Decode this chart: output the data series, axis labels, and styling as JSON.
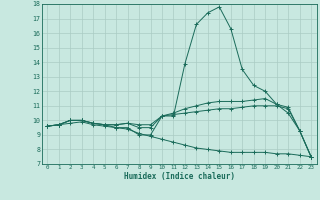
{
  "xlabel": "Humidex (Indice chaleur)",
  "bg_color": "#c8e8e0",
  "grid_color": "#aaccc4",
  "line_color": "#1a6b5a",
  "xlim": [
    -0.5,
    23.5
  ],
  "ylim": [
    7,
    18
  ],
  "xticks": [
    0,
    1,
    2,
    3,
    4,
    5,
    6,
    7,
    8,
    9,
    10,
    11,
    12,
    13,
    14,
    15,
    16,
    17,
    18,
    19,
    20,
    21,
    22,
    23
  ],
  "yticks": [
    7,
    8,
    9,
    10,
    11,
    12,
    13,
    14,
    15,
    16,
    17,
    18
  ],
  "series": [
    {
      "x": [
        0,
        1,
        2,
        3,
        4,
        5,
        6,
        7,
        8,
        9,
        10,
        11,
        12,
        13,
        14,
        15,
        16,
        17,
        18,
        19,
        20,
        21,
        22,
        23
      ],
      "y": [
        9.6,
        9.7,
        10.0,
        10.0,
        9.8,
        9.7,
        9.5,
        9.5,
        9.0,
        9.0,
        10.3,
        10.3,
        13.9,
        16.6,
        17.4,
        17.8,
        16.3,
        13.5,
        12.4,
        12.0,
        11.1,
        10.5,
        9.3,
        7.5
      ]
    },
    {
      "x": [
        0,
        1,
        2,
        3,
        4,
        5,
        6,
        7,
        8,
        9,
        10,
        11,
        12,
        13,
        14,
        15,
        16,
        17,
        18,
        19,
        20,
        21,
        22,
        23
      ],
      "y": [
        9.6,
        9.7,
        10.0,
        10.0,
        9.8,
        9.7,
        9.7,
        9.8,
        9.5,
        9.5,
        10.3,
        10.5,
        10.8,
        11.0,
        11.2,
        11.3,
        11.3,
        11.3,
        11.4,
        11.5,
        11.1,
        10.9,
        9.3,
        7.5
      ]
    },
    {
      "x": [
        0,
        1,
        2,
        3,
        4,
        5,
        6,
        7,
        8,
        9,
        10,
        11,
        12,
        13,
        14,
        15,
        16,
        17,
        18,
        19,
        20,
        21,
        22,
        23
      ],
      "y": [
        9.6,
        9.7,
        10.0,
        10.0,
        9.8,
        9.7,
        9.7,
        9.8,
        9.7,
        9.7,
        10.3,
        10.4,
        10.5,
        10.6,
        10.7,
        10.8,
        10.8,
        10.9,
        11.0,
        11.0,
        11.0,
        10.8,
        9.3,
        7.5
      ]
    },
    {
      "x": [
        0,
        1,
        2,
        3,
        4,
        5,
        6,
        7,
        8,
        9,
        10,
        11,
        12,
        13,
        14,
        15,
        16,
        17,
        18,
        19,
        20,
        21,
        22,
        23
      ],
      "y": [
        9.6,
        9.7,
        9.8,
        9.9,
        9.7,
        9.6,
        9.5,
        9.4,
        9.1,
        8.9,
        8.7,
        8.5,
        8.3,
        8.1,
        8.0,
        7.9,
        7.8,
        7.8,
        7.8,
        7.8,
        7.7,
        7.7,
        7.6,
        7.5
      ]
    }
  ]
}
